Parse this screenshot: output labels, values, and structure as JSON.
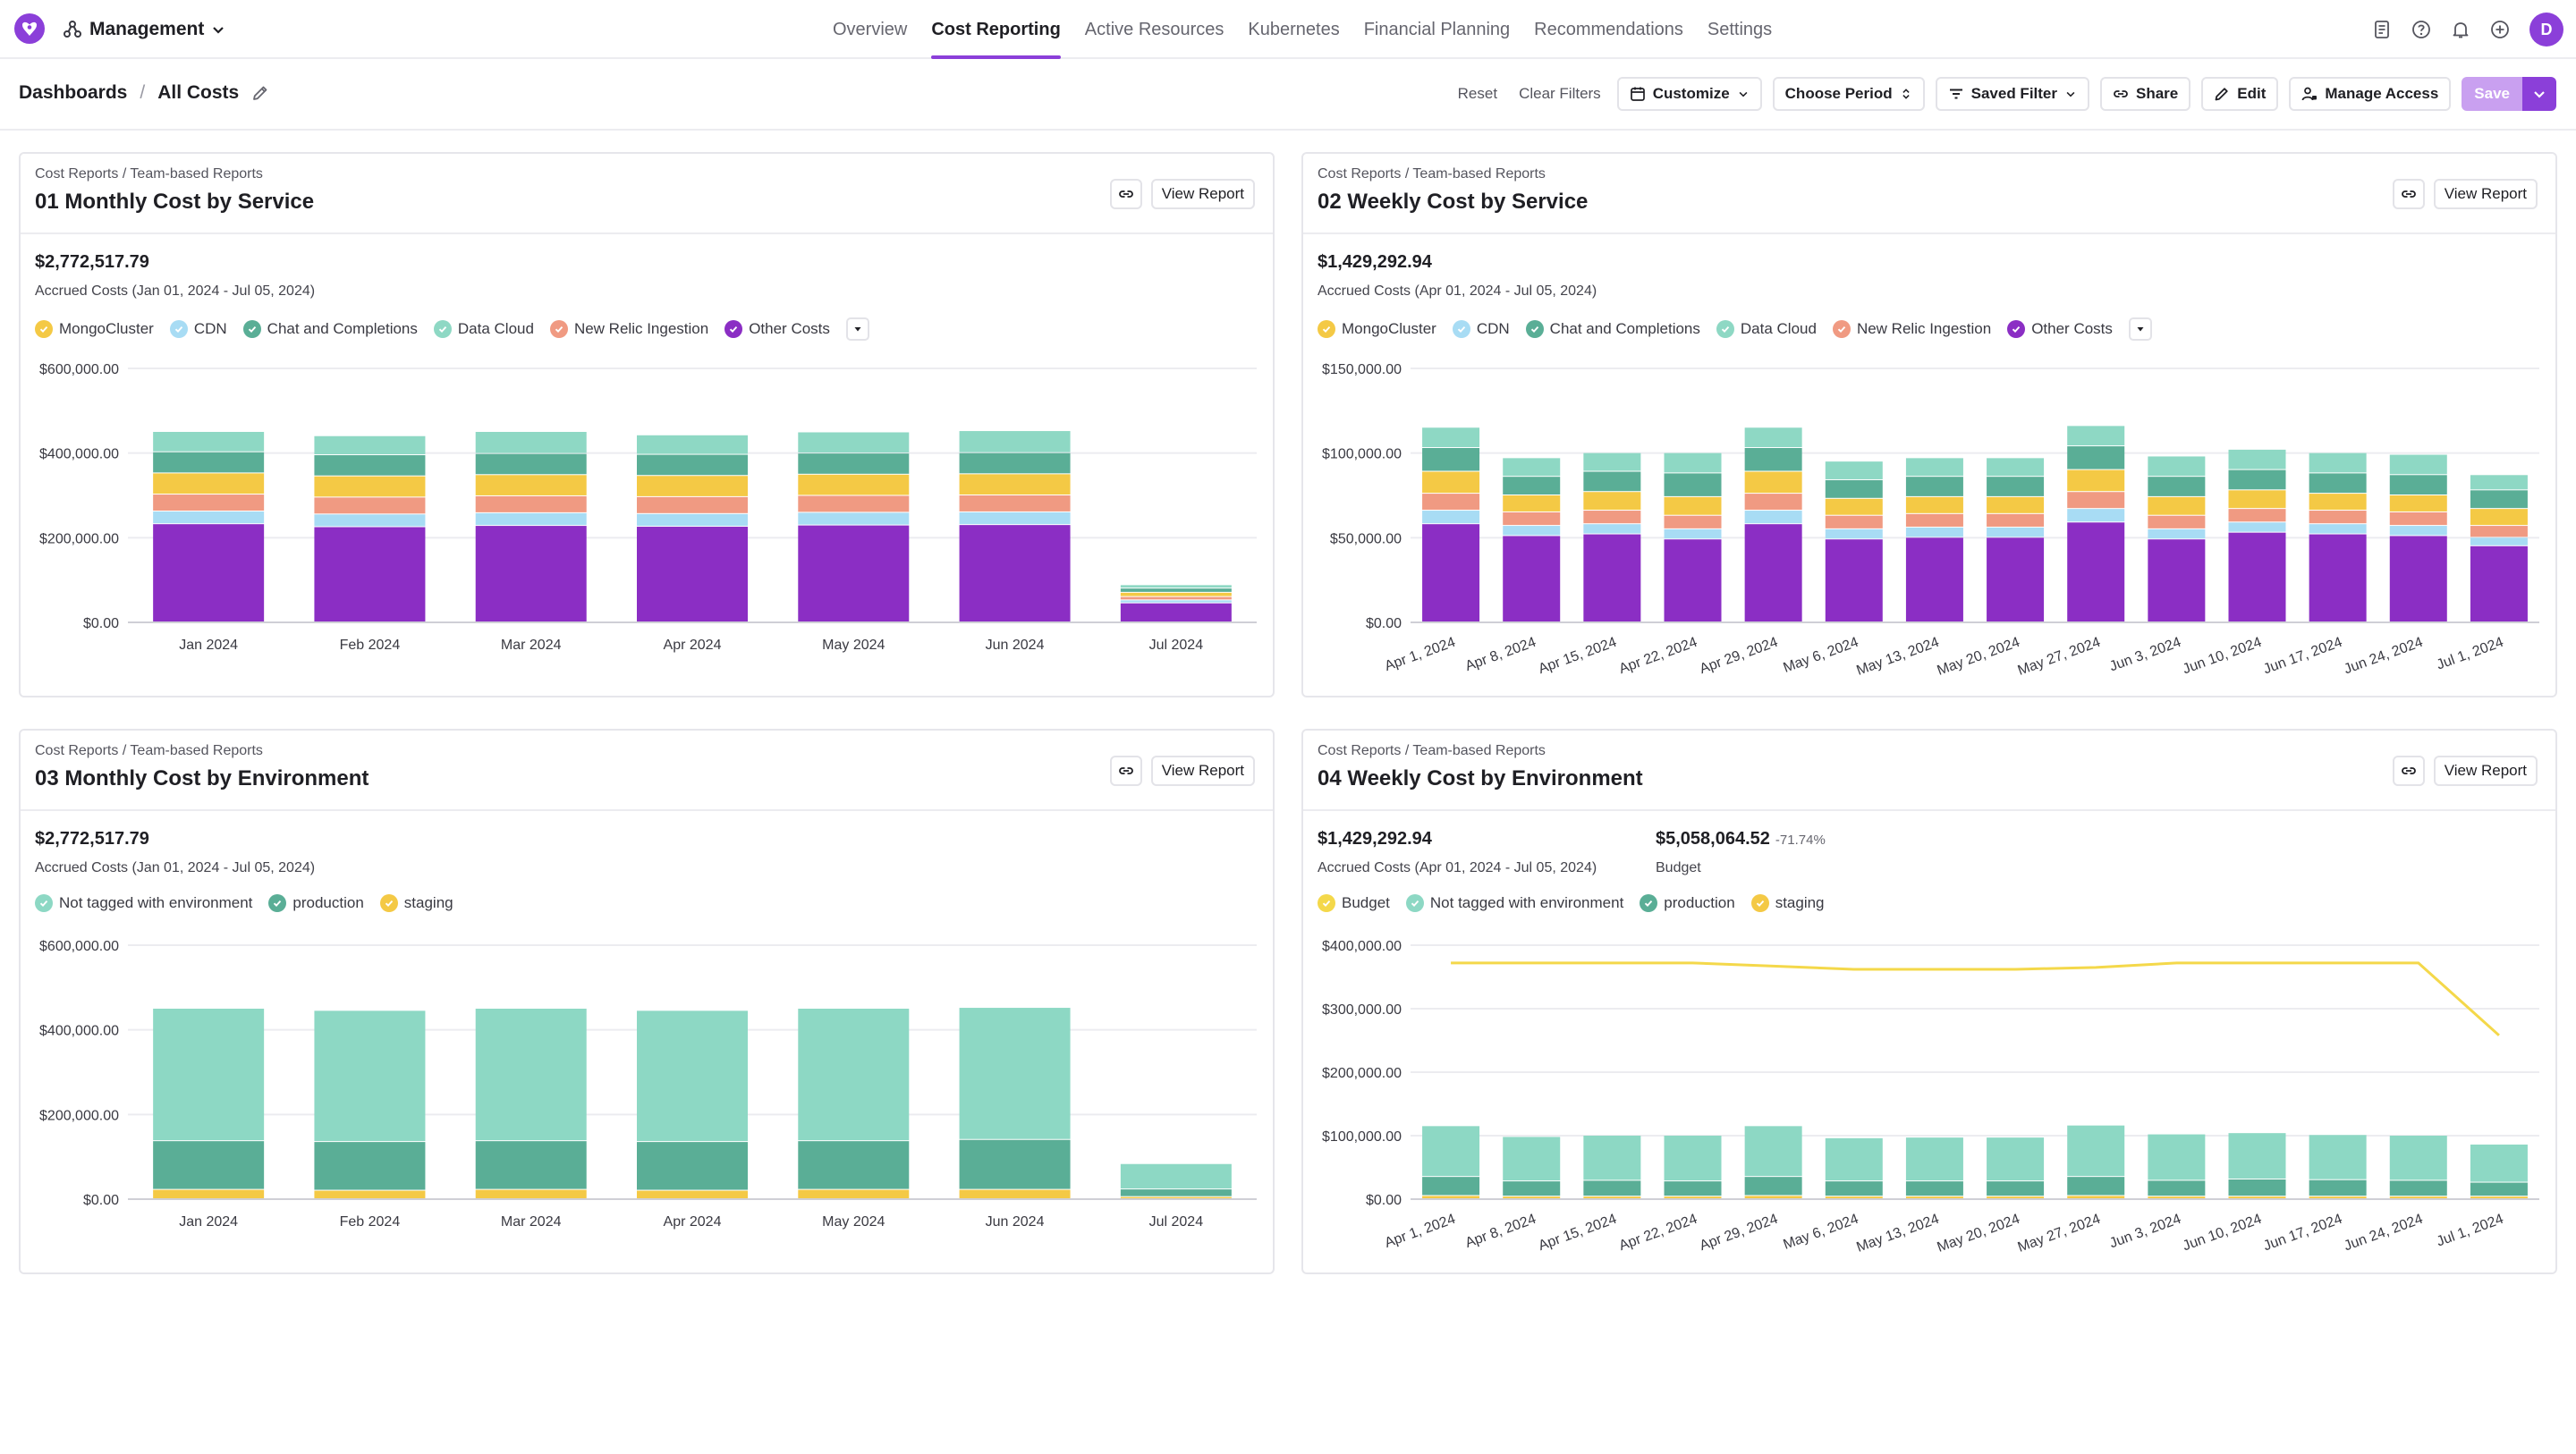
{
  "nav": {
    "workspace": "Management",
    "tabs": [
      {
        "label": "Overview",
        "active": false
      },
      {
        "label": "Cost Reporting",
        "active": true
      },
      {
        "label": "Active Resources",
        "active": false
      },
      {
        "label": "Kubernetes",
        "active": false
      },
      {
        "label": "Financial Planning",
        "active": false
      },
      {
        "label": "Recommendations",
        "active": false
      },
      {
        "label": "Settings",
        "active": false
      }
    ],
    "icons": [
      "document-icon",
      "help-icon",
      "bell-icon",
      "add-circle-icon"
    ],
    "avatar": "D"
  },
  "toolbar": {
    "breadcrumb_root": "Dashboards",
    "breadcrumb_separator": "/",
    "breadcrumb_current": "All Costs",
    "reset": "Reset",
    "clear_filters": "Clear Filters",
    "customize": "Customize",
    "choose_period": "Choose Period",
    "saved_filter": "Saved Filter",
    "share": "Share",
    "edit": "Edit",
    "manage_access": "Manage Access",
    "save": "Save"
  },
  "colors": {
    "accent": "#8b3fd9",
    "MongoCluster": "#f4c945",
    "CDN": "#a8dcf4",
    "Chat and Completions": "#5aae96",
    "Data Cloud": "#8ed8c4",
    "New Relic Ingestion": "#f09a82",
    "Other Costs": "#8b2ec4",
    "Budget": "#f4d84a",
    "Not tagged with environment": "#8dd8c4",
    "production": "#5aae96",
    "staging": "#f4c945"
  },
  "cards": [
    {
      "path": "Cost Reports / Team-based Reports",
      "title": "01 Monthly Cost by Service",
      "link_icon": "link-icon",
      "view": "View Report",
      "kpis": [
        {
          "value": "$2,772,517.79",
          "sub": "Accrued Costs (Jan 01, 2024 - Jul 05, 2024)"
        }
      ],
      "legend": [
        "MongoCluster",
        "CDN",
        "Chat and Completions",
        "Data Cloud",
        "New Relic Ingestion",
        "Other Costs"
      ],
      "legend_more": true
    },
    {
      "path": "Cost Reports / Team-based Reports",
      "title": "02 Weekly Cost by Service",
      "link_icon": "link-icon",
      "view": "View Report",
      "kpis": [
        {
          "value": "$1,429,292.94",
          "sub": "Accrued Costs (Apr 01, 2024 - Jul 05, 2024)"
        }
      ],
      "legend": [
        "MongoCluster",
        "CDN",
        "Chat and Completions",
        "Data Cloud",
        "New Relic Ingestion",
        "Other Costs"
      ],
      "legend_more": true
    },
    {
      "path": "Cost Reports / Team-based Reports",
      "title": "03 Monthly Cost by Environment",
      "link_icon": "link-icon",
      "view": "View Report",
      "kpis": [
        {
          "value": "$2,772,517.79",
          "sub": "Accrued Costs (Jan 01, 2024 - Jul 05, 2024)"
        }
      ],
      "legend": [
        "Not tagged with environment",
        "production",
        "staging"
      ],
      "legend_more": false
    },
    {
      "path": "Cost Reports / Team-based Reports",
      "title": "04 Weekly Cost by Environment",
      "link_icon": "link-icon",
      "view": "View Report",
      "kpis": [
        {
          "value": "$1,429,292.94",
          "sub": "Accrued Costs (Apr 01, 2024 - Jul 05, 2024)"
        },
        {
          "value": "$5,058,064.52",
          "pct": "-71.74%",
          "sub": "Budget"
        }
      ],
      "legend": [
        "Budget",
        "Not tagged with environment",
        "production",
        "staging"
      ],
      "legend_more": false
    }
  ],
  "chart_data": [
    {
      "type": "bar",
      "stacked": true,
      "title": "01 Monthly Cost by Service",
      "categories": [
        "Jan 2024",
        "Feb 2024",
        "Mar 2024",
        "Apr 2024",
        "May 2024",
        "Jun 2024",
        "Jul 2024"
      ],
      "ylim": [
        0,
        600000
      ],
      "yticks": [
        0,
        200000,
        400000,
        600000
      ],
      "ytick_labels": [
        "$0.00",
        "$200,000.00",
        "$400,000.00",
        "$600,000.00"
      ],
      "grid": true,
      "legend_placement": "top-left",
      "series": [
        {
          "name": "Other Costs",
          "values": [
            232000,
            225000,
            228000,
            226000,
            229000,
            230000,
            45000
          ]
        },
        {
          "name": "CDN",
          "values": [
            30000,
            30000,
            30000,
            30000,
            30000,
            30000,
            7000
          ]
        },
        {
          "name": "New Relic Ingestion",
          "values": [
            40000,
            40000,
            40000,
            40000,
            40000,
            40000,
            8000
          ]
        },
        {
          "name": "MongoCluster",
          "values": [
            50000,
            50000,
            50000,
            50000,
            50000,
            50000,
            10000
          ]
        },
        {
          "name": "Chat and Completions",
          "values": [
            50000,
            50000,
            50000,
            50000,
            50000,
            50000,
            10000
          ]
        },
        {
          "name": "Data Cloud",
          "values": [
            48000,
            45000,
            52000,
            46000,
            50000,
            52000,
            8000
          ]
        }
      ]
    },
    {
      "type": "bar",
      "stacked": true,
      "title": "02 Weekly Cost by Service",
      "categories": [
        "Apr 1, 2024",
        "Apr 8, 2024",
        "Apr 15, 2024",
        "Apr 22, 2024",
        "Apr 29, 2024",
        "May 6, 2024",
        "May 13, 2024",
        "May 20, 2024",
        "May 27, 2024",
        "Jun 3, 2024",
        "Jun 10, 2024",
        "Jun 17, 2024",
        "Jun 24, 2024",
        "Jul 1, 2024"
      ],
      "ylim": [
        0,
        150000
      ],
      "yticks": [
        0,
        50000,
        100000,
        150000
      ],
      "ytick_labels": [
        "$0.00",
        "$50,000.00",
        "$100,000.00",
        "$150,000.00"
      ],
      "grid": true,
      "legend_placement": "top-left",
      "series": [
        {
          "name": "Other Costs",
          "values": [
            58000,
            51000,
            52000,
            49000,
            58000,
            49000,
            50000,
            50000,
            59000,
            49000,
            53000,
            52000,
            51000,
            45000
          ]
        },
        {
          "name": "CDN",
          "values": [
            8000,
            6000,
            6000,
            6000,
            8000,
            6000,
            6000,
            6000,
            8000,
            6000,
            6000,
            6000,
            6000,
            5000
          ]
        },
        {
          "name": "New Relic Ingestion",
          "values": [
            10000,
            8000,
            8000,
            8000,
            10000,
            8000,
            8000,
            8000,
            10000,
            8000,
            8000,
            8000,
            8000,
            7000
          ]
        },
        {
          "name": "MongoCluster",
          "values": [
            13000,
            10000,
            11000,
            11000,
            13000,
            10000,
            10000,
            10000,
            13000,
            11000,
            11000,
            10000,
            10000,
            10000
          ]
        },
        {
          "name": "Chat and Completions",
          "values": [
            14000,
            11000,
            12000,
            14000,
            14000,
            11000,
            12000,
            12000,
            14000,
            12000,
            12000,
            12000,
            12000,
            11000
          ]
        },
        {
          "name": "Data Cloud",
          "values": [
            12000,
            11000,
            11000,
            12000,
            12000,
            11000,
            11000,
            11000,
            12000,
            12000,
            12000,
            12000,
            12000,
            9000
          ]
        }
      ]
    },
    {
      "type": "bar",
      "stacked": true,
      "title": "03 Monthly Cost by Environment",
      "categories": [
        "Jan 2024",
        "Feb 2024",
        "Mar 2024",
        "Apr 2024",
        "May 2024",
        "Jun 2024",
        "Jul 2024"
      ],
      "ylim": [
        0,
        600000
      ],
      "yticks": [
        0,
        200000,
        400000,
        600000
      ],
      "ytick_labels": [
        "$0.00",
        "$200,000.00",
        "$400,000.00",
        "$600,000.00"
      ],
      "grid": true,
      "legend_placement": "top-left",
      "series": [
        {
          "name": "staging",
          "values": [
            22000,
            20000,
            22000,
            20000,
            22000,
            22000,
            5000
          ]
        },
        {
          "name": "production",
          "values": [
            115000,
            115000,
            115000,
            115000,
            115000,
            118000,
            18000
          ]
        },
        {
          "name": "Not tagged with environment",
          "values": [
            313000,
            310000,
            313000,
            310000,
            313000,
            312000,
            60000
          ]
        }
      ]
    },
    {
      "type": "bar",
      "stacked": true,
      "title": "04 Weekly Cost by Environment",
      "categories": [
        "Apr 1, 2024",
        "Apr 8, 2024",
        "Apr 15, 2024",
        "Apr 22, 2024",
        "Apr 29, 2024",
        "May 6, 2024",
        "May 13, 2024",
        "May 20, 2024",
        "May 27, 2024",
        "Jun 3, 2024",
        "Jun 10, 2024",
        "Jun 17, 2024",
        "Jun 24, 2024",
        "Jul 1, 2024"
      ],
      "ylim": [
        0,
        400000
      ],
      "yticks": [
        0,
        100000,
        200000,
        300000,
        400000
      ],
      "ytick_labels": [
        "$0.00",
        "$100,000.00",
        "$200,000.00",
        "$300,000.00",
        "$400,000.00"
      ],
      "grid": true,
      "legend_placement": "top-left",
      "series": [
        {
          "name": "staging",
          "values": [
            5000,
            4000,
            4000,
            4000,
            5000,
            4000,
            4000,
            4000,
            5000,
            4000,
            4000,
            4000,
            4000,
            4000
          ]
        },
        {
          "name": "production",
          "values": [
            30000,
            24000,
            25000,
            24000,
            30000,
            24000,
            24000,
            24000,
            30000,
            25000,
            27000,
            26000,
            25000,
            22000
          ]
        },
        {
          "name": "Not tagged with environment",
          "values": [
            80000,
            70000,
            71000,
            72000,
            80000,
            68000,
            69000,
            69000,
            81000,
            73000,
            73000,
            71000,
            71000,
            60000
          ]
        }
      ],
      "line_series": [
        {
          "name": "Budget",
          "values": [
            372000,
            372000,
            372000,
            372000,
            367000,
            362000,
            362000,
            362000,
            365000,
            372000,
            372000,
            372000,
            372000,
            258000
          ]
        }
      ]
    }
  ]
}
